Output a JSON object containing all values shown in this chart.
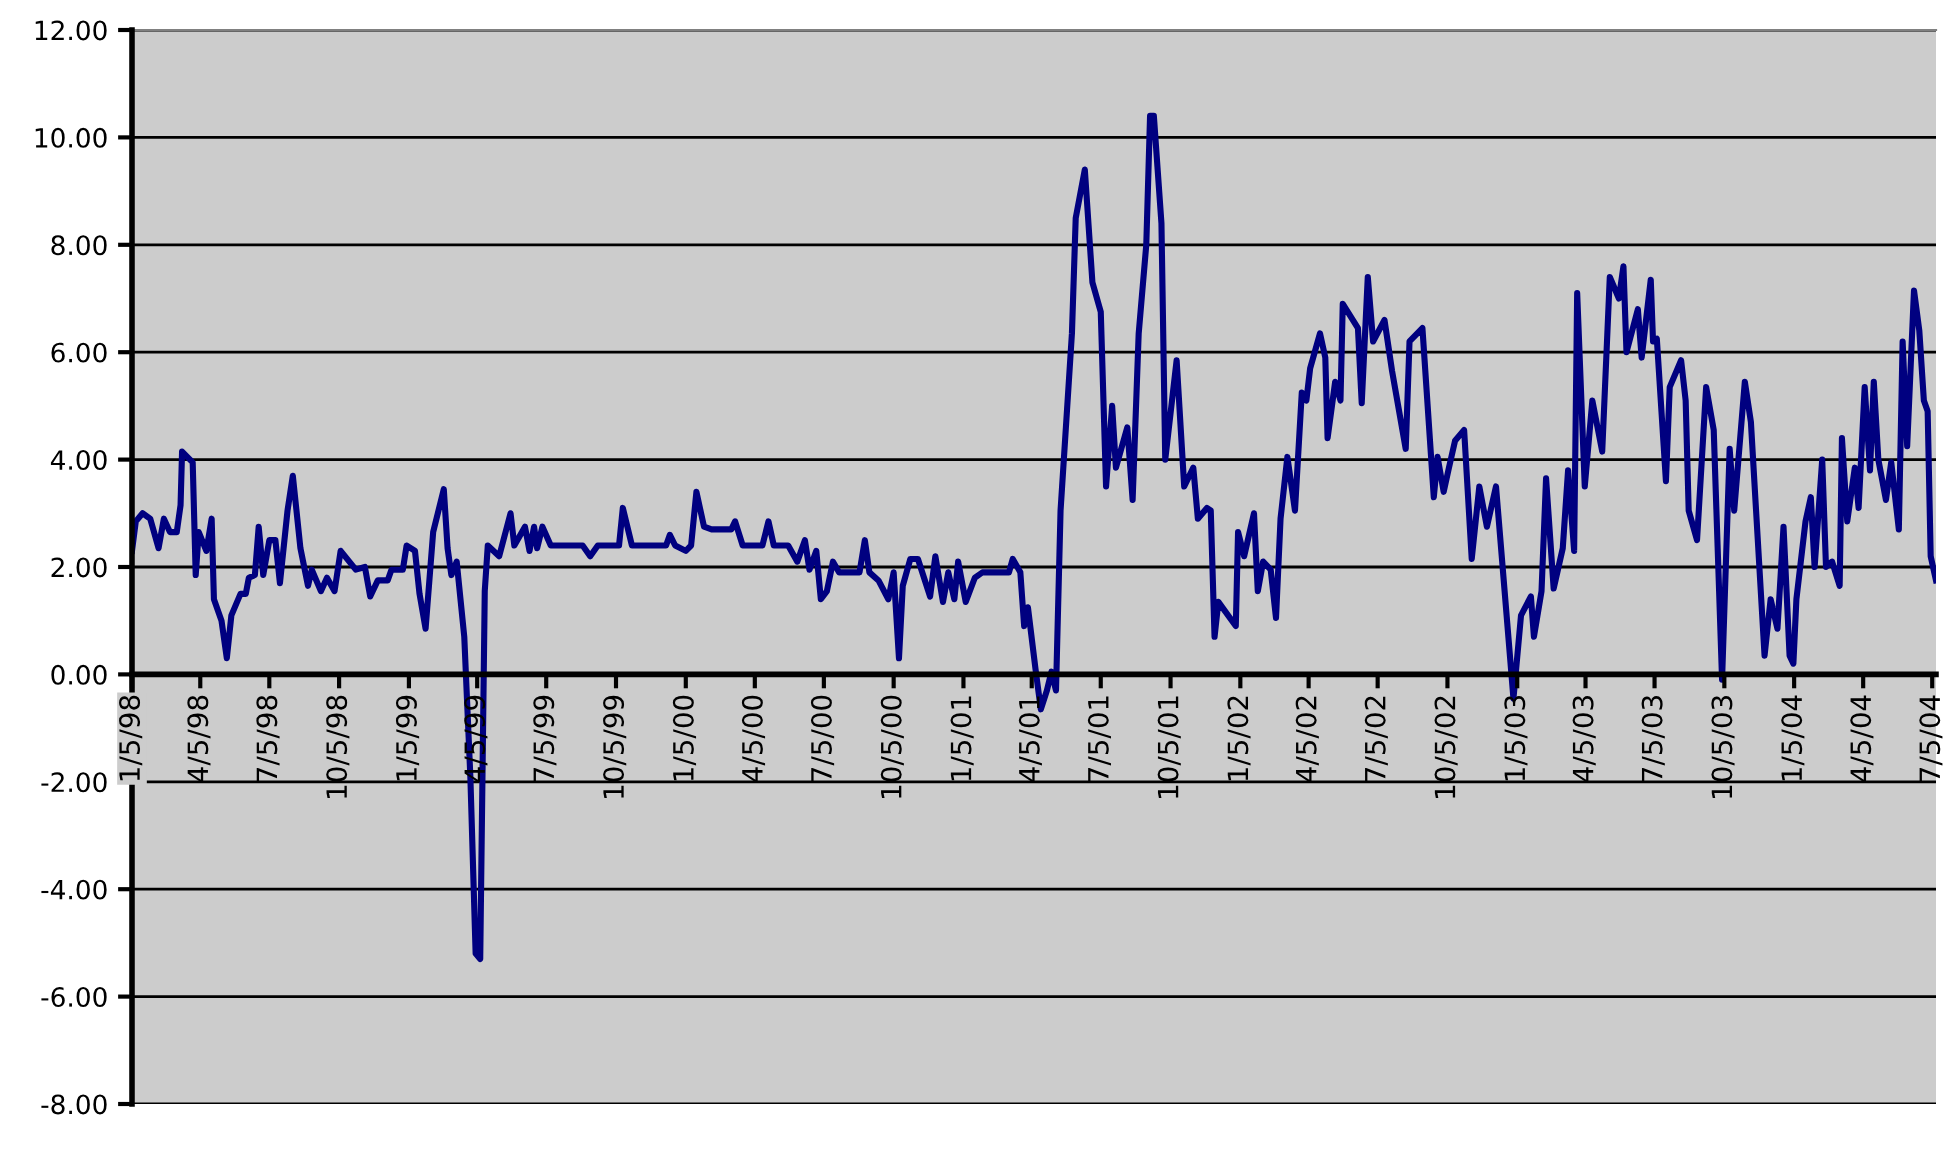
{
  "chart_data": {
    "type": "line",
    "x": [
      "1998-01-05",
      "1998-01-10",
      "1998-01-19",
      "1998-01-29",
      "1998-02-09",
      "1998-02-16",
      "1998-02-24",
      "1998-03-05",
      "1998-03-10",
      "1998-03-12",
      "1998-03-26",
      "1998-03-30",
      "1998-04-03",
      "1998-04-13",
      "1998-04-20",
      "1998-04-23",
      "1998-05-03",
      "1998-05-10",
      "1998-05-16",
      "1998-05-28",
      "1998-06-04",
      "1998-06-08",
      "1998-06-16",
      "1998-06-21",
      "1998-06-27",
      "1998-07-05",
      "1998-07-13",
      "1998-07-19",
      "1998-07-29",
      "1998-08-05",
      "1998-08-15",
      "1998-08-25",
      "1998-08-30",
      "1998-09-11",
      "1998-09-19",
      "1998-09-29",
      "1998-10-07",
      "1998-10-27",
      "1998-11-08",
      "1998-11-15",
      "1998-11-25",
      "1998-12-08",
      "1998-12-13",
      "1998-12-28",
      "1999-01-02",
      "1999-01-13",
      "1999-01-19",
      "1999-01-27",
      "1999-02-06",
      "1999-02-20",
      "1999-02-25",
      "1999-03-02",
      "1999-03-09",
      "1999-03-19",
      "1999-03-27",
      "1999-04-03",
      "1999-04-09",
      "1999-04-15",
      "1999-04-19",
      "1999-05-04",
      "1999-05-19",
      "1999-05-24",
      "1999-06-07",
      "1999-06-13",
      "1999-06-19",
      "1999-06-23",
      "1999-06-30",
      "1999-07-11",
      "1999-08-22",
      "1999-09-01",
      "1999-09-11",
      "1999-10-09",
      "1999-10-14",
      "1999-10-26",
      "1999-12-10",
      "1999-12-15",
      "1999-12-22",
      "2000-01-05",
      "2000-01-12",
      "2000-01-19",
      "2000-01-29",
      "2000-02-08",
      "2000-03-05",
      "2000-03-10",
      "2000-03-20",
      "2000-04-15",
      "2000-04-23",
      "2000-04-30",
      "2000-05-19",
      "2000-05-31",
      "2000-06-10",
      "2000-06-16",
      "2000-06-25",
      "2000-07-01",
      "2000-07-09",
      "2000-07-17",
      "2000-07-25",
      "2000-08-21",
      "2000-08-28",
      "2000-09-03",
      "2000-09-15",
      "2000-09-28",
      "2000-10-05",
      "2000-10-12",
      "2000-10-17",
      "2000-10-27",
      "2000-11-06",
      "2000-11-22",
      "2000-11-29",
      "2000-12-09",
      "2000-12-16",
      "2000-12-24",
      "2000-12-29",
      "2001-01-08",
      "2001-01-20",
      "2001-01-30",
      "2001-03-06",
      "2001-03-11",
      "2001-03-21",
      "2001-03-26",
      "2001-03-31",
      "2001-04-10",
      "2001-04-17",
      "2001-04-25",
      "2001-05-01",
      "2001-05-07",
      "2001-05-13",
      "2001-05-28",
      "2001-06-02",
      "2001-06-14",
      "2001-06-24",
      "2001-07-05",
      "2001-07-12",
      "2001-07-20",
      "2001-07-25",
      "2001-08-09",
      "2001-08-16",
      "2001-08-24",
      "2001-09-03",
      "2001-09-08",
      "2001-09-13",
      "2001-09-23",
      "2001-09-28",
      "2001-10-13",
      "2001-10-23",
      "2001-11-04",
      "2001-11-10",
      "2001-11-22",
      "2001-11-27",
      "2001-12-02",
      "2001-12-07",
      "2001-12-30",
      "2002-01-02",
      "2002-01-10",
      "2002-01-23",
      "2002-01-28",
      "2002-02-04",
      "2002-02-14",
      "2002-02-21",
      "2002-02-27",
      "2002-03-08",
      "2002-03-18",
      "2002-03-27",
      "2002-04-02",
      "2002-04-07",
      "2002-04-20",
      "2002-04-27",
      "2002-04-30",
      "2002-05-10",
      "2002-05-17",
      "2002-05-20",
      "2002-06-09",
      "2002-06-14",
      "2002-06-22",
      "2002-06-29",
      "2002-07-14",
      "2002-07-24",
      "2002-08-11",
      "2002-08-16",
      "2002-09-02",
      "2002-09-17",
      "2002-09-22",
      "2002-09-30",
      "2002-10-07",
      "2002-10-15",
      "2002-10-27",
      "2002-11-06",
      "2002-11-16",
      "2002-11-26",
      "2002-12-08",
      "2002-12-31",
      "2003-01-10",
      "2003-01-23",
      "2003-01-27",
      "2003-02-06",
      "2003-02-12",
      "2003-02-22",
      "2003-03-06",
      "2003-03-13",
      "2003-03-21",
      "2003-03-25",
      "2003-04-04",
      "2003-04-14",
      "2003-04-27",
      "2003-05-07",
      "2003-05-19",
      "2003-05-25",
      "2003-05-29",
      "2003-06-13",
      "2003-06-18",
      "2003-06-30",
      "2003-07-03",
      "2003-07-08",
      "2003-07-20",
      "2003-07-25",
      "2003-08-09",
      "2003-08-15",
      "2003-08-19",
      "2003-08-30",
      "2003-09-11",
      "2003-09-21",
      "2003-10-02",
      "2003-10-12",
      "2003-10-18",
      "2003-11-01",
      "2003-11-09",
      "2003-11-27",
      "2003-12-05",
      "2003-12-14",
      "2003-12-22",
      "2003-12-30",
      "2004-01-04",
      "2004-01-08",
      "2004-01-20",
      "2004-01-27",
      "2004-02-01",
      "2004-02-11",
      "2004-02-16",
      "2004-02-24",
      "2004-03-05",
      "2004-03-08",
      "2004-03-15",
      "2004-03-25",
      "2004-03-30",
      "2004-04-07",
      "2004-04-14",
      "2004-04-19",
      "2004-04-25",
      "2004-05-05",
      "2004-05-12",
      "2004-05-22",
      "2004-05-27",
      "2004-06-02",
      "2004-06-11",
      "2004-06-18",
      "2004-06-24",
      "2004-06-29",
      "2004-07-03",
      "2004-07-10"
    ],
    "series": [
      {
        "color": "#000080",
        "values": [
          2.3,
          2.85,
          3.0,
          2.9,
          2.35,
          2.9,
          2.65,
          2.65,
          3.15,
          4.15,
          3.95,
          1.85,
          2.65,
          2.3,
          2.9,
          1.4,
          1.0,
          0.3,
          1.1,
          1.5,
          1.5,
          1.8,
          1.85,
          2.75,
          1.85,
          2.5,
          2.5,
          1.7,
          3.05,
          3.7,
          2.35,
          1.65,
          1.95,
          1.55,
          1.8,
          1.55,
          2.3,
          1.95,
          2.0,
          1.45,
          1.75,
          1.75,
          1.95,
          1.95,
          2.4,
          2.3,
          1.5,
          0.85,
          2.65,
          3.45,
          2.35,
          1.85,
          2.1,
          0.7,
          -1.9,
          -5.2,
          -5.3,
          1.55,
          2.4,
          2.2,
          3.0,
          2.4,
          2.75,
          2.3,
          2.75,
          2.35,
          2.75,
          2.4,
          2.4,
          2.2,
          2.4,
          2.4,
          3.1,
          2.4,
          2.4,
          2.6,
          2.4,
          2.3,
          2.4,
          3.4,
          2.75,
          2.7,
          2.7,
          2.85,
          2.4,
          2.4,
          2.85,
          2.4,
          2.4,
          2.1,
          2.5,
          1.95,
          2.3,
          1.4,
          1.55,
          2.1,
          1.9,
          1.9,
          2.5,
          1.9,
          1.75,
          1.4,
          1.9,
          0.3,
          1.65,
          2.15,
          2.15,
          1.45,
          2.2,
          1.35,
          1.9,
          1.4,
          2.1,
          1.35,
          1.8,
          1.9,
          1.9,
          2.15,
          1.9,
          0.9,
          1.25,
          0.1,
          -0.65,
          -0.3,
          0.05,
          -0.3,
          3.05,
          6.35,
          8.5,
          9.4,
          7.3,
          6.75,
          3.5,
          5.0,
          3.85,
          4.6,
          3.25,
          6.35,
          8.0,
          10.4,
          10.4,
          8.4,
          4.0,
          5.85,
          3.5,
          3.85,
          2.9,
          3.1,
          3.05,
          0.7,
          1.35,
          0.9,
          2.65,
          2.2,
          3.0,
          1.55,
          2.1,
          1.95,
          1.05,
          2.9,
          4.05,
          3.05,
          5.25,
          5.1,
          5.7,
          6.35,
          5.9,
          4.4,
          5.45,
          5.1,
          6.9,
          6.45,
          5.05,
          7.4,
          6.2,
          6.6,
          5.65,
          4.2,
          6.2,
          6.45,
          3.3,
          4.05,
          3.4,
          3.85,
          4.35,
          4.55,
          2.15,
          3.5,
          2.75,
          3.5,
          -0.45,
          1.1,
          1.45,
          0.7,
          1.55,
          3.65,
          1.6,
          2.35,
          3.8,
          2.3,
          7.1,
          3.5,
          5.1,
          4.15,
          7.4,
          7.0,
          7.6,
          6.0,
          6.8,
          5.9,
          7.35,
          6.2,
          6.25,
          3.6,
          5.35,
          5.85,
          5.1,
          3.05,
          2.5,
          5.35,
          4.55,
          -0.1,
          4.2,
          3.05,
          5.45,
          4.7,
          0.35,
          1.4,
          0.85,
          2.75,
          0.35,
          0.2,
          1.4,
          2.85,
          3.3,
          2.0,
          4.0,
          2.0,
          2.1,
          1.65,
          4.4,
          2.85,
          3.85,
          3.1,
          5.35,
          3.8,
          5.45,
          4.0,
          3.25,
          3.95,
          2.7,
          6.2,
          4.25,
          7.15,
          6.4,
          5.1,
          4.9,
          2.2,
          1.75
        ]
      }
    ],
    "xlim": [
      "1998-01-05",
      "2004-07-10"
    ],
    "xticks": [
      {
        "value": "1998-01-05",
        "label": "1/5/98"
      },
      {
        "value": "1998-04-05",
        "label": "4/5/98"
      },
      {
        "value": "1998-07-05",
        "label": "7/5/98"
      },
      {
        "value": "1998-10-05",
        "label": "10/5/98"
      },
      {
        "value": "1999-01-05",
        "label": "1/5/99"
      },
      {
        "value": "1999-04-05",
        "label": "4/5/99"
      },
      {
        "value": "1999-07-05",
        "label": "7/5/99"
      },
      {
        "value": "1999-10-05",
        "label": "10/5/99"
      },
      {
        "value": "2000-01-05",
        "label": "1/5/00"
      },
      {
        "value": "2000-04-05",
        "label": "4/5/00"
      },
      {
        "value": "2000-07-05",
        "label": "7/5/00"
      },
      {
        "value": "2000-10-05",
        "label": "10/5/00"
      },
      {
        "value": "2001-01-05",
        "label": "1/5/01"
      },
      {
        "value": "2001-04-05",
        "label": "4/5/01"
      },
      {
        "value": "2001-07-05",
        "label": "7/5/01"
      },
      {
        "value": "2001-10-05",
        "label": "10/5/01"
      },
      {
        "value": "2002-01-05",
        "label": "1/5/02"
      },
      {
        "value": "2002-04-05",
        "label": "4/5/02"
      },
      {
        "value": "2002-07-05",
        "label": "7/5/02"
      },
      {
        "value": "2002-10-05",
        "label": "10/5/02"
      },
      {
        "value": "2003-01-05",
        "label": "1/5/03"
      },
      {
        "value": "2003-04-05",
        "label": "4/5/03"
      },
      {
        "value": "2003-07-05",
        "label": "7/5/03"
      },
      {
        "value": "2003-10-05",
        "label": "10/5/03"
      },
      {
        "value": "2004-01-05",
        "label": "1/5/04"
      },
      {
        "value": "2004-04-05",
        "label": "4/5/04"
      },
      {
        "value": "2004-07-05",
        "label": "7/5/04"
      }
    ],
    "ylim": [
      -8,
      12
    ],
    "yticks": [
      {
        "value": -8,
        "label": "-8.00"
      },
      {
        "value": -6,
        "label": "-6.00"
      },
      {
        "value": -4,
        "label": "-4.00"
      },
      {
        "value": -2,
        "label": "-2.00"
      },
      {
        "value": 0,
        "label": "0.00"
      },
      {
        "value": 2,
        "label": "2.00"
      },
      {
        "value": 4,
        "label": "4.00"
      },
      {
        "value": 6,
        "label": "6.00"
      },
      {
        "value": 8,
        "label": "8.00"
      },
      {
        "value": 10,
        "label": "10.00"
      },
      {
        "value": 12,
        "label": "12.00"
      }
    ],
    "grid": "y",
    "marker": "none",
    "line_style": "solid"
  }
}
